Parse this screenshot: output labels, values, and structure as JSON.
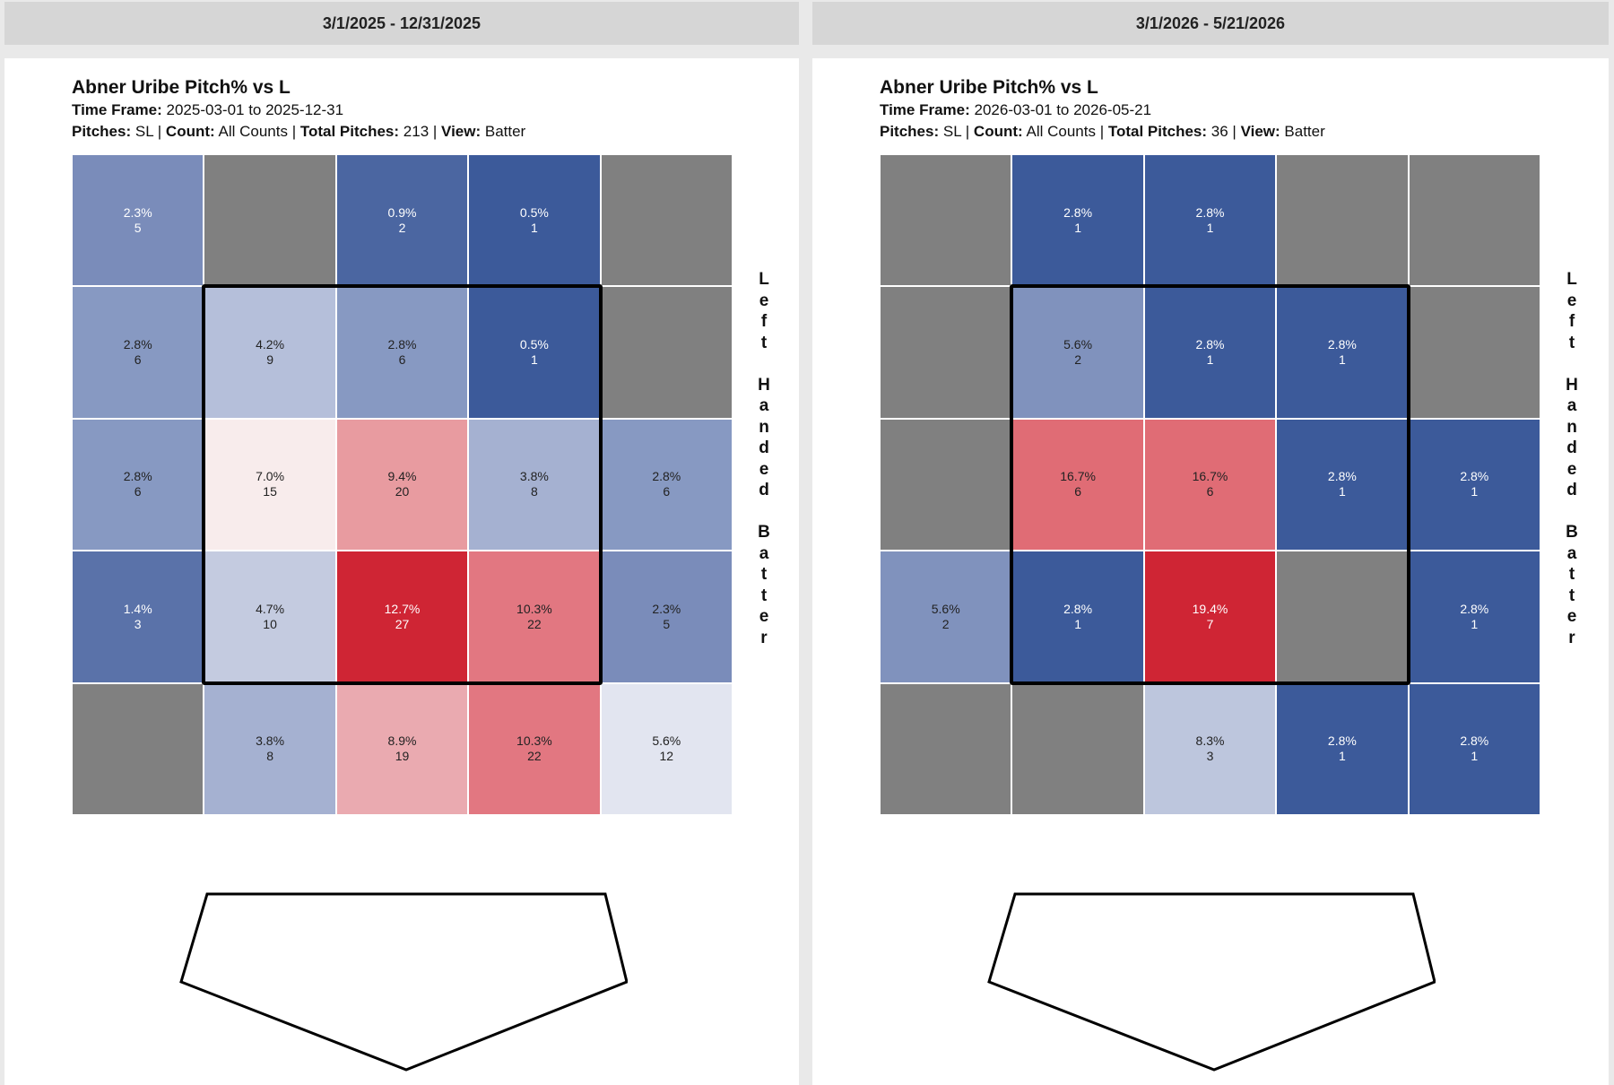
{
  "panels": [
    {
      "header": "3/1/2025 - 12/31/2025",
      "title": "Abner Uribe Pitch% vs L",
      "time_frame_label": "Time Frame:",
      "time_frame_value": "2025-03-01 to 2025-12-31",
      "pitches_label": "Pitches:",
      "pitches_value": "SL",
      "count_label": "Count:",
      "count_value": "All Counts",
      "total_label": "Total Pitches:",
      "total_value": "213",
      "view_label": "View:",
      "view_value": "Batter",
      "side_label": "Left Handed Batter"
    },
    {
      "header": "3/1/2026 - 5/21/2026",
      "title": "Abner Uribe Pitch% vs L",
      "time_frame_label": "Time Frame:",
      "time_frame_value": "2026-03-01 to 2026-05-21",
      "pitches_label": "Pitches:",
      "pitches_value": "SL",
      "count_label": "Count:",
      "count_value": "All Counts",
      "total_label": "Total Pitches:",
      "total_value": "36",
      "view_label": "View:",
      "view_value": "Batter",
      "side_label": "Left Handed Batter"
    }
  ],
  "chart_data": [
    {
      "type": "heatmap",
      "title": "Abner Uribe Pitch% vs L",
      "rows": 5,
      "cols": 5,
      "cells": [
        [
          {
            "pct": "2.3%",
            "n": "5",
            "v": 2.3
          },
          {
            "pct": "",
            "n": "",
            "v": null
          },
          {
            "pct": "0.9%",
            "n": "2",
            "v": 0.9
          },
          {
            "pct": "0.5%",
            "n": "1",
            "v": 0.5
          },
          {
            "pct": "",
            "n": "",
            "v": null
          }
        ],
        [
          {
            "pct": "2.8%",
            "n": "6",
            "v": 2.8
          },
          {
            "pct": "4.2%",
            "n": "9",
            "v": 4.2
          },
          {
            "pct": "2.8%",
            "n": "6",
            "v": 2.8
          },
          {
            "pct": "0.5%",
            "n": "1",
            "v": 0.5
          },
          {
            "pct": "",
            "n": "",
            "v": null
          }
        ],
        [
          {
            "pct": "2.8%",
            "n": "6",
            "v": 2.8
          },
          {
            "pct": "7.0%",
            "n": "15",
            "v": 7.0
          },
          {
            "pct": "9.4%",
            "n": "20",
            "v": 9.4
          },
          {
            "pct": "3.8%",
            "n": "8",
            "v": 3.8
          },
          {
            "pct": "2.8%",
            "n": "6",
            "v": 2.8
          }
        ],
        [
          {
            "pct": "1.4%",
            "n": "3",
            "v": 1.4
          },
          {
            "pct": "4.7%",
            "n": "10",
            "v": 4.7
          },
          {
            "pct": "12.7%",
            "n": "27",
            "v": 12.7
          },
          {
            "pct": "10.3%",
            "n": "22",
            "v": 10.3
          },
          {
            "pct": "2.3%",
            "n": "5",
            "v": 2.3
          }
        ],
        [
          {
            "pct": "",
            "n": "",
            "v": null
          },
          {
            "pct": "3.8%",
            "n": "8",
            "v": 3.8
          },
          {
            "pct": "8.9%",
            "n": "19",
            "v": 8.9
          },
          {
            "pct": "10.3%",
            "n": "22",
            "v": 10.3
          },
          {
            "pct": "5.6%",
            "n": "12",
            "v": 5.6
          }
        ]
      ],
      "colors": [
        [
          "#7a8cba",
          "#808080",
          "#4b66a1",
          "#3c5a9a",
          "#808080"
        ],
        [
          "#8799c2",
          "#b5bfda",
          "#8799c2",
          "#3c5a9a",
          "#808080"
        ],
        [
          "#8799c2",
          "#f8ecec",
          "#e89ba0",
          "#a5b1d1",
          "#8799c2"
        ],
        [
          "#5a72a9",
          "#c4cbe0",
          "#cf2534",
          "#e27781",
          "#7a8cba"
        ],
        [
          "#808080",
          "#a5b1d1",
          "#eaaab0",
          "#e27781",
          "#e2e5f0"
        ]
      ],
      "text_colors": [
        [
          "#ffffff",
          "#ffffff",
          "#ffffff",
          "#ffffff",
          "#ffffff"
        ],
        [
          "#222222",
          "#222222",
          "#222222",
          "#ffffff",
          "#ffffff"
        ],
        [
          "#222222",
          "#222222",
          "#222222",
          "#222222",
          "#222222"
        ],
        [
          "#ffffff",
          "#222222",
          "#ffffff",
          "#222222",
          "#222222"
        ],
        [
          "#ffffff",
          "#222222",
          "#222222",
          "#222222",
          "#222222"
        ]
      ]
    },
    {
      "type": "heatmap",
      "title": "Abner Uribe Pitch% vs L",
      "rows": 5,
      "cols": 5,
      "cells": [
        [
          {
            "pct": "",
            "n": "",
            "v": null
          },
          {
            "pct": "2.8%",
            "n": "1",
            "v": 2.8
          },
          {
            "pct": "2.8%",
            "n": "1",
            "v": 2.8
          },
          {
            "pct": "",
            "n": "",
            "v": null
          },
          {
            "pct": "",
            "n": "",
            "v": null
          }
        ],
        [
          {
            "pct": "",
            "n": "",
            "v": null
          },
          {
            "pct": "5.6%",
            "n": "2",
            "v": 5.6
          },
          {
            "pct": "2.8%",
            "n": "1",
            "v": 2.8
          },
          {
            "pct": "2.8%",
            "n": "1",
            "v": 2.8
          },
          {
            "pct": "",
            "n": "",
            "v": null
          }
        ],
        [
          {
            "pct": "",
            "n": "",
            "v": null
          },
          {
            "pct": "16.7%",
            "n": "6",
            "v": 16.7
          },
          {
            "pct": "16.7%",
            "n": "6",
            "v": 16.7
          },
          {
            "pct": "2.8%",
            "n": "1",
            "v": 2.8
          },
          {
            "pct": "2.8%",
            "n": "1",
            "v": 2.8
          }
        ],
        [
          {
            "pct": "5.6%",
            "n": "2",
            "v": 5.6
          },
          {
            "pct": "2.8%",
            "n": "1",
            "v": 2.8
          },
          {
            "pct": "19.4%",
            "n": "7",
            "v": 19.4
          },
          {
            "pct": "",
            "n": "",
            "v": null
          },
          {
            "pct": "2.8%",
            "n": "1",
            "v": 2.8
          }
        ],
        [
          {
            "pct": "",
            "n": "",
            "v": null
          },
          {
            "pct": "",
            "n": "",
            "v": null
          },
          {
            "pct": "8.3%",
            "n": "3",
            "v": 8.3
          },
          {
            "pct": "2.8%",
            "n": "1",
            "v": 2.8
          },
          {
            "pct": "2.8%",
            "n": "1",
            "v": 2.8
          }
        ]
      ],
      "colors": [
        [
          "#808080",
          "#3c5a9a",
          "#3c5a9a",
          "#808080",
          "#808080"
        ],
        [
          "#808080",
          "#8092bd",
          "#3c5a9a",
          "#3c5a9a",
          "#808080"
        ],
        [
          "#808080",
          "#e06c75",
          "#e06c75",
          "#3c5a9a",
          "#3c5a9a"
        ],
        [
          "#8092bd",
          "#3c5a9a",
          "#cf2534",
          "#808080",
          "#3c5a9a"
        ],
        [
          "#808080",
          "#808080",
          "#bdc6dd",
          "#3c5a9a",
          "#3c5a9a"
        ]
      ],
      "text_colors": [
        [
          "#ffffff",
          "#ffffff",
          "#ffffff",
          "#ffffff",
          "#ffffff"
        ],
        [
          "#ffffff",
          "#222222",
          "#ffffff",
          "#ffffff",
          "#ffffff"
        ],
        [
          "#ffffff",
          "#222222",
          "#222222",
          "#ffffff",
          "#ffffff"
        ],
        [
          "#222222",
          "#ffffff",
          "#ffffff",
          "#ffffff",
          "#ffffff"
        ],
        [
          "#ffffff",
          "#ffffff",
          "#222222",
          "#ffffff",
          "#ffffff"
        ]
      ]
    }
  ]
}
